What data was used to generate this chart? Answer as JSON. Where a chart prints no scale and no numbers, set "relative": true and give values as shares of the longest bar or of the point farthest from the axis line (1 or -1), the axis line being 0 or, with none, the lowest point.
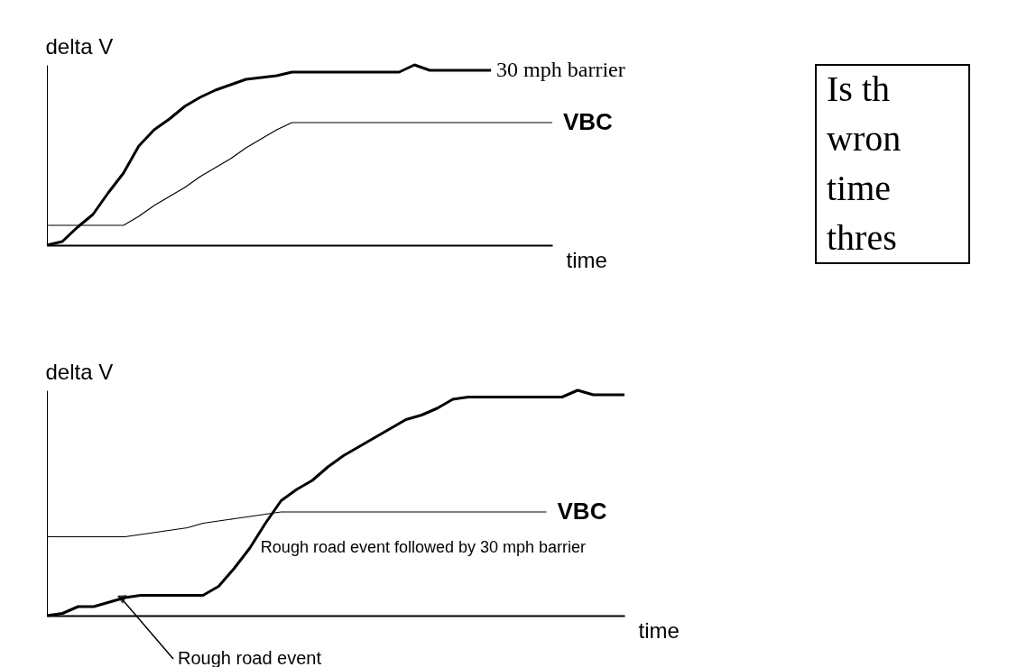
{
  "chart_data": [
    {
      "type": "line",
      "relative": true,
      "ylabel": "delta V",
      "xlabel": "time",
      "grid": false,
      "tick_labels": false,
      "marker": "none",
      "line_style": "solid",
      "categories": [
        null,
        null,
        null,
        null,
        null,
        null,
        null,
        null,
        null,
        null,
        null,
        null,
        null,
        null,
        null,
        null,
        null,
        null,
        null,
        null,
        null,
        null,
        null,
        null,
        null,
        null,
        null,
        null,
        null,
        null,
        null,
        null,
        null,
        null
      ],
      "series": [
        {
          "name": "30 mph barrier",
          "color": "#000000",
          "values": [
            0,
            0.02,
            0.1,
            0.17,
            0.29,
            0.4,
            0.55,
            0.64,
            0.7,
            0.77,
            0.82,
            0.86,
            0.89,
            0.92,
            0.93,
            0.94,
            0.96,
            0.96,
            0.96,
            0.96,
            0.96,
            0.96,
            0.96,
            0.96,
            1,
            0.97,
            0.97,
            0.97,
            0.97,
            0.97,
            null,
            null,
            null,
            null
          ]
        },
        {
          "name": "VBC",
          "color": "#000000",
          "values": [
            0.11,
            0.11,
            0.11,
            0.11,
            0.11,
            0.11,
            0.16,
            0.22,
            0.27,
            0.32,
            0.38,
            0.43,
            0.48,
            0.54,
            0.59,
            0.64,
            0.68,
            0.68,
            0.68,
            0.68,
            0.68,
            0.68,
            0.68,
            0.68,
            0.68,
            0.68,
            0.68,
            0.68,
            0.68,
            0.68,
            0.68,
            0.68,
            0.68,
            0.68
          ]
        }
      ]
    },
    {
      "type": "line",
      "relative": true,
      "ylabel": "delta V",
      "xlabel": "time",
      "grid": false,
      "tick_labels": false,
      "marker": "none",
      "line_style": "solid",
      "annotations": [
        "Rough road event"
      ],
      "categories": [
        null,
        null,
        null,
        null,
        null,
        null,
        null,
        null,
        null,
        null,
        null,
        null,
        null,
        null,
        null,
        null,
        null,
        null,
        null,
        null,
        null,
        null,
        null,
        null,
        null,
        null,
        null,
        null,
        null,
        null,
        null,
        null,
        null,
        null,
        null,
        null,
        null,
        null
      ],
      "series": [
        {
          "name": "Rough road event followed by 30 mph barrier",
          "color": "#000000",
          "values": [
            0,
            0.01,
            0.04,
            0.04,
            0.06,
            0.08,
            0.09,
            0.09,
            0.09,
            0.09,
            0.09,
            0.13,
            0.21,
            0.3,
            0.41,
            0.51,
            0.56,
            0.6,
            0.66,
            0.71,
            0.75,
            0.79,
            0.83,
            0.87,
            0.89,
            0.92,
            0.96,
            0.97,
            0.97,
            0.97,
            0.97,
            0.97,
            0.97,
            0.97,
            1,
            0.98,
            0.98,
            0.98
          ]
        },
        {
          "name": "VBC",
          "color": "#000000",
          "values": [
            0.35,
            0.35,
            0.35,
            0.35,
            0.35,
            0.35,
            0.36,
            0.37,
            0.38,
            0.39,
            0.41,
            0.42,
            0.43,
            0.44,
            0.45,
            0.46,
            0.46,
            0.46,
            0.46,
            0.46,
            0.46,
            0.46,
            0.46,
            0.46,
            0.46,
            0.46,
            0.46,
            0.46,
            0.46,
            0.46,
            0.46,
            0.46,
            0.46,
            null,
            null,
            null,
            null,
            null
          ]
        }
      ]
    },
    {
      "type": "other",
      "annotations": [
        "Is th",
        "wron",
        "time",
        "thres"
      ]
    }
  ]
}
